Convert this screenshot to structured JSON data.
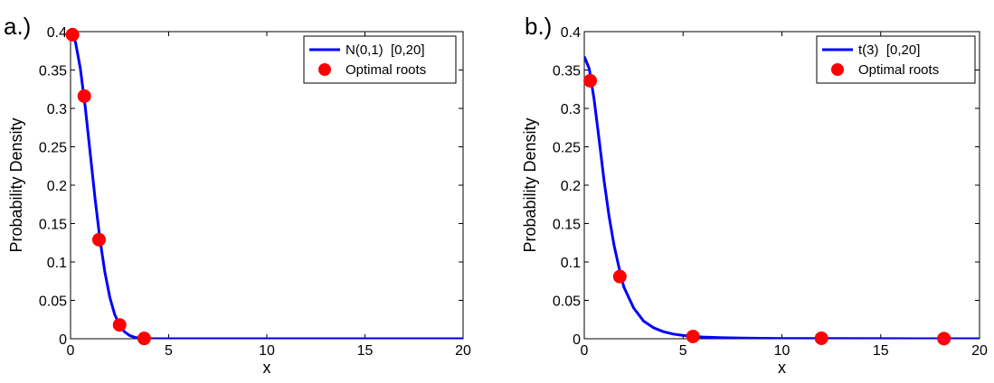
{
  "chart_data": [
    {
      "type": "line",
      "panel_label": "a.)",
      "xlabel": "x",
      "ylabel": "Probability Density",
      "xlim": [
        0,
        20
      ],
      "ylim": [
        0,
        0.4
      ],
      "xticks": [
        0,
        5,
        10,
        15,
        20
      ],
      "yticks": [
        0,
        0.05,
        0.1,
        0.15,
        0.2,
        0.25,
        0.3,
        0.35,
        0.4
      ],
      "ytick_labels": [
        "0",
        "0.05",
        "0.1",
        "0.15",
        "0.2",
        "0.25",
        "0.3",
        "0.35",
        "0.4"
      ],
      "legend_position": "top-right",
      "series": [
        {
          "name": "N(0,1)  [0,20]",
          "kind": "line",
          "color": "#0000ff",
          "x": [
            0,
            0.25,
            0.5,
            0.75,
            1.0,
            1.25,
            1.5,
            1.75,
            2.0,
            2.25,
            2.5,
            2.75,
            3.0,
            3.25,
            3.5,
            3.75,
            4.0,
            4.5,
            5,
            6,
            8,
            10,
            15,
            20
          ],
          "y": [
            0.3989,
            0.3867,
            0.3521,
            0.3011,
            0.242,
            0.1826,
            0.1295,
            0.0863,
            0.054,
            0.0317,
            0.0175,
            0.0091,
            0.0044,
            0.002,
            0.0009,
            0.0004,
            0.0001,
            0.0,
            0.0,
            0.0,
            0.0,
            0.0,
            0.0,
            0.0
          ]
        },
        {
          "name": "Optimal roots",
          "kind": "scatter",
          "color": "#ff0000",
          "x": [
            0.1,
            0.7,
            1.45,
            2.5,
            3.75
          ],
          "y": [
            0.396,
            0.316,
            0.129,
            0.018,
            0.0004
          ]
        }
      ]
    },
    {
      "type": "line",
      "panel_label": "b.)",
      "xlabel": "x",
      "ylabel": "Probability Density",
      "xlim": [
        0,
        20
      ],
      "ylim": [
        0,
        0.4
      ],
      "xticks": [
        0,
        5,
        10,
        15,
        20
      ],
      "yticks": [
        0,
        0.05,
        0.1,
        0.15,
        0.2,
        0.25,
        0.3,
        0.35,
        0.4
      ],
      "ytick_labels": [
        "0",
        "0.05",
        "0.1",
        "0.15",
        "0.2",
        "0.25",
        "0.3",
        "0.35",
        "0.4"
      ],
      "legend_position": "top-right",
      "series": [
        {
          "name": "t(3)  [0,20]",
          "kind": "line",
          "color": "#0000ff",
          "x": [
            0,
            0.25,
            0.5,
            0.75,
            1.0,
            1.25,
            1.5,
            1.75,
            2.0,
            2.5,
            3.0,
            3.5,
            4.0,
            4.5,
            5,
            6,
            7,
            8,
            10,
            12,
            15,
            20
          ],
          "y": [
            0.3676,
            0.3517,
            0.3114,
            0.2593,
            0.2067,
            0.1602,
            0.1225,
            0.0936,
            0.0675,
            0.04,
            0.0229,
            0.0144,
            0.0092,
            0.0061,
            0.0042,
            0.0022,
            0.0013,
            0.0008,
            0.0003,
            0.0002,
            0.0001,
            0.0
          ]
        },
        {
          "name": "Optimal roots",
          "kind": "scatter",
          "color": "#ff0000",
          "x": [
            0.3,
            1.8,
            5.5,
            12.0,
            18.2
          ],
          "y": [
            0.336,
            0.081,
            0.003,
            0.0006,
            0.0002
          ]
        }
      ]
    }
  ]
}
